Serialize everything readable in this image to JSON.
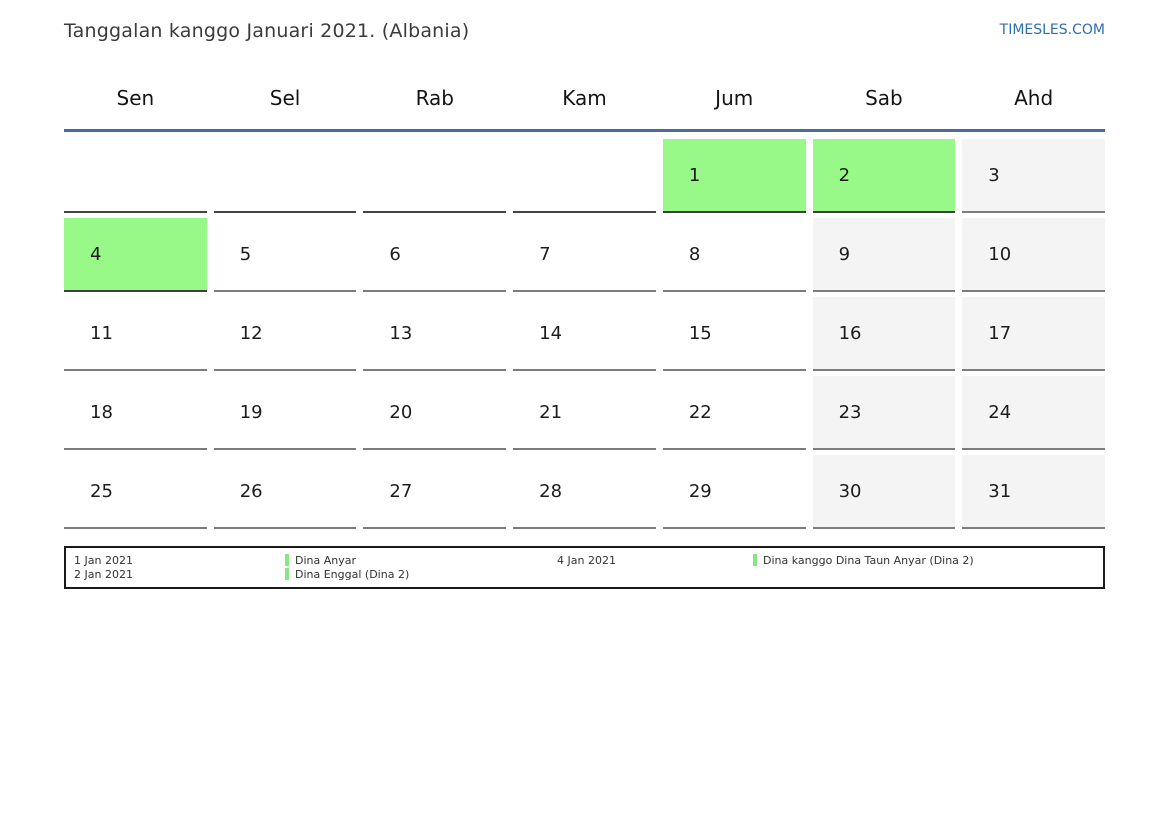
{
  "header": {
    "title": "Tanggalan kanggo Januari 2021. (Albania)",
    "site_link": "TIMESLES.COM"
  },
  "colors": {
    "holiday_green": "#98f888",
    "weekend_gray": "#f4f4f4",
    "header_line_blue": "#4a6d99",
    "link_blue": "#2e6fb2",
    "legend_bar_green": "#88e784"
  },
  "weekdays": [
    "Sen",
    "Sel",
    "Rab",
    "Kam",
    "Jum",
    "Sab",
    "Ahd"
  ],
  "weeks": [
    [
      {
        "day": "",
        "type": "empty"
      },
      {
        "day": "",
        "type": "empty"
      },
      {
        "day": "",
        "type": "empty"
      },
      {
        "day": "",
        "type": "empty"
      },
      {
        "day": "1",
        "type": "holiday"
      },
      {
        "day": "2",
        "type": "holiday"
      },
      {
        "day": "3",
        "type": "weekend"
      }
    ],
    [
      {
        "day": "4",
        "type": "holiday"
      },
      {
        "day": "5",
        "type": "normal"
      },
      {
        "day": "6",
        "type": "normal"
      },
      {
        "day": "7",
        "type": "normal"
      },
      {
        "day": "8",
        "type": "normal"
      },
      {
        "day": "9",
        "type": "weekend"
      },
      {
        "day": "10",
        "type": "weekend"
      }
    ],
    [
      {
        "day": "11",
        "type": "normal"
      },
      {
        "day": "12",
        "type": "normal"
      },
      {
        "day": "13",
        "type": "normal"
      },
      {
        "day": "14",
        "type": "normal"
      },
      {
        "day": "15",
        "type": "normal"
      },
      {
        "day": "16",
        "type": "weekend"
      },
      {
        "day": "17",
        "type": "weekend"
      }
    ],
    [
      {
        "day": "18",
        "type": "normal"
      },
      {
        "day": "19",
        "type": "normal"
      },
      {
        "day": "20",
        "type": "normal"
      },
      {
        "day": "21",
        "type": "normal"
      },
      {
        "day": "22",
        "type": "normal"
      },
      {
        "day": "23",
        "type": "weekend"
      },
      {
        "day": "24",
        "type": "weekend"
      }
    ],
    [
      {
        "day": "25",
        "type": "normal"
      },
      {
        "day": "26",
        "type": "normal"
      },
      {
        "day": "27",
        "type": "normal"
      },
      {
        "day": "28",
        "type": "normal"
      },
      {
        "day": "29",
        "type": "normal"
      },
      {
        "day": "30",
        "type": "weekend"
      },
      {
        "day": "31",
        "type": "weekend"
      }
    ]
  ],
  "legend": {
    "entries": [
      {
        "date": "1 Jan 2021",
        "label": "Dina Anyar"
      },
      {
        "date": "2 Jan 2021",
        "label": "Dina Enggal (Dina 2)"
      },
      {
        "date": "4 Jan 2021",
        "label": "Dina kanggo Dina Taun Anyar (Dina 2)"
      }
    ]
  }
}
